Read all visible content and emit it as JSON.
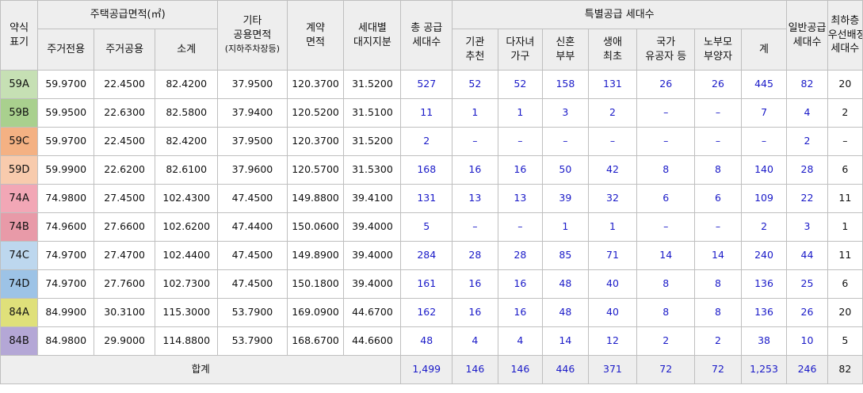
{
  "headers": {
    "type_label": [
      "약식",
      "표기"
    ],
    "housing_area_group": "주택공급면적(㎡)",
    "exclusive": "주거전용",
    "common": "주거공용",
    "subtotal": "소계",
    "other_common": [
      "기타",
      "공용면적"
    ],
    "other_common_note": "(지하주차장등)",
    "contract_area": [
      "계약",
      "면적"
    ],
    "land_share": [
      "세대별",
      "대지지분"
    ],
    "total_supply": [
      "총 공급",
      "세대수"
    ],
    "special_group": "특별공급 세대수",
    "special_cols": [
      [
        "기관",
        "추천"
      ],
      [
        "다자녀",
        "가구"
      ],
      [
        "신혼",
        "부부"
      ],
      [
        "생애",
        "최초"
      ],
      [
        "국가",
        "유공자 등"
      ],
      [
        "노부모",
        "부양자"
      ],
      [
        "계"
      ]
    ],
    "general": [
      "일반공급",
      "세대수"
    ],
    "lowest_floor": [
      "최하층",
      "우선배정",
      "세대수"
    ]
  },
  "rows": [
    {
      "type": "59A",
      "color": "#c6e0b4",
      "exclusive": "59.9700",
      "common": "22.4500",
      "subtotal": "82.4200",
      "other": "37.9500",
      "contract": "120.3700",
      "land": "31.5200",
      "total": "527",
      "s1": "52",
      "s2": "52",
      "s3": "158",
      "s4": "131",
      "s5": "26",
      "s6": "26",
      "s7": "445",
      "general": "82",
      "lowest": "20"
    },
    {
      "type": "59B",
      "color": "#a9d08e",
      "exclusive": "59.9500",
      "common": "22.6300",
      "subtotal": "82.5800",
      "other": "37.9400",
      "contract": "120.5200",
      "land": "31.5100",
      "total": "11",
      "s1": "1",
      "s2": "1",
      "s3": "3",
      "s4": "2",
      "s5": "–",
      "s6": "–",
      "s7": "7",
      "general": "4",
      "lowest": "2"
    },
    {
      "type": "59C",
      "color": "#f4b183",
      "exclusive": "59.9700",
      "common": "22.4500",
      "subtotal": "82.4200",
      "other": "37.9500",
      "contract": "120.3700",
      "land": "31.5200",
      "total": "2",
      "s1": "–",
      "s2": "–",
      "s3": "–",
      "s4": "–",
      "s5": "–",
      "s6": "–",
      "s7": "–",
      "general": "2",
      "lowest": "–"
    },
    {
      "type": "59D",
      "color": "#f8cbad",
      "exclusive": "59.9900",
      "common": "22.6200",
      "subtotal": "82.6100",
      "other": "37.9600",
      "contract": "120.5700",
      "land": "31.5300",
      "total": "168",
      "s1": "16",
      "s2": "16",
      "s3": "50",
      "s4": "42",
      "s5": "8",
      "s6": "8",
      "s7": "140",
      "general": "28",
      "lowest": "6"
    },
    {
      "type": "74A",
      "color": "#f2a7b6",
      "exclusive": "74.9800",
      "common": "27.4500",
      "subtotal": "102.4300",
      "other": "47.4500",
      "contract": "149.8800",
      "land": "39.4100",
      "total": "131",
      "s1": "13",
      "s2": "13",
      "s3": "39",
      "s4": "32",
      "s5": "6",
      "s6": "6",
      "s7": "109",
      "general": "22",
      "lowest": "11"
    },
    {
      "type": "74B",
      "color": "#e89aa8",
      "exclusive": "74.9600",
      "common": "27.6600",
      "subtotal": "102.6200",
      "other": "47.4400",
      "contract": "150.0600",
      "land": "39.4000",
      "total": "5",
      "s1": "–",
      "s2": "–",
      "s3": "1",
      "s4": "1",
      "s5": "–",
      "s6": "–",
      "s7": "2",
      "general": "3",
      "lowest": "1"
    },
    {
      "type": "74C",
      "color": "#bdd7ee",
      "exclusive": "74.9700",
      "common": "27.4700",
      "subtotal": "102.4400",
      "other": "47.4500",
      "contract": "149.8900",
      "land": "39.4000",
      "total": "284",
      "s1": "28",
      "s2": "28",
      "s3": "85",
      "s4": "71",
      "s5": "14",
      "s6": "14",
      "s7": "240",
      "general": "44",
      "lowest": "11"
    },
    {
      "type": "74D",
      "color": "#9dc3e6",
      "exclusive": "74.9700",
      "common": "27.7600",
      "subtotal": "102.7300",
      "other": "47.4500",
      "contract": "150.1800",
      "land": "39.4000",
      "total": "161",
      "s1": "16",
      "s2": "16",
      "s3": "48",
      "s4": "40",
      "s5": "8",
      "s6": "8",
      "s7": "136",
      "general": "25",
      "lowest": "6"
    },
    {
      "type": "84A",
      "color": "#dfe07a",
      "exclusive": "84.9900",
      "common": "30.3100",
      "subtotal": "115.3000",
      "other": "53.7900",
      "contract": "169.0900",
      "land": "44.6700",
      "total": "162",
      "s1": "16",
      "s2": "16",
      "s3": "48",
      "s4": "40",
      "s5": "8",
      "s6": "8",
      "s7": "136",
      "general": "26",
      "lowest": "20"
    },
    {
      "type": "84B",
      "color": "#b4a7d6",
      "exclusive": "84.9800",
      "common": "29.9000",
      "subtotal": "114.8800",
      "other": "53.7900",
      "contract": "168.6700",
      "land": "44.6600",
      "total": "48",
      "s1": "4",
      "s2": "4",
      "s3": "14",
      "s4": "12",
      "s5": "2",
      "s6": "2",
      "s7": "38",
      "general": "10",
      "lowest": "5"
    }
  ],
  "total_row": {
    "label": "합계",
    "total": "1,499",
    "s1": "146",
    "s2": "146",
    "s3": "446",
    "s4": "371",
    "s5": "72",
    "s6": "72",
    "s7": "1,253",
    "general": "246",
    "lowest": "82"
  }
}
